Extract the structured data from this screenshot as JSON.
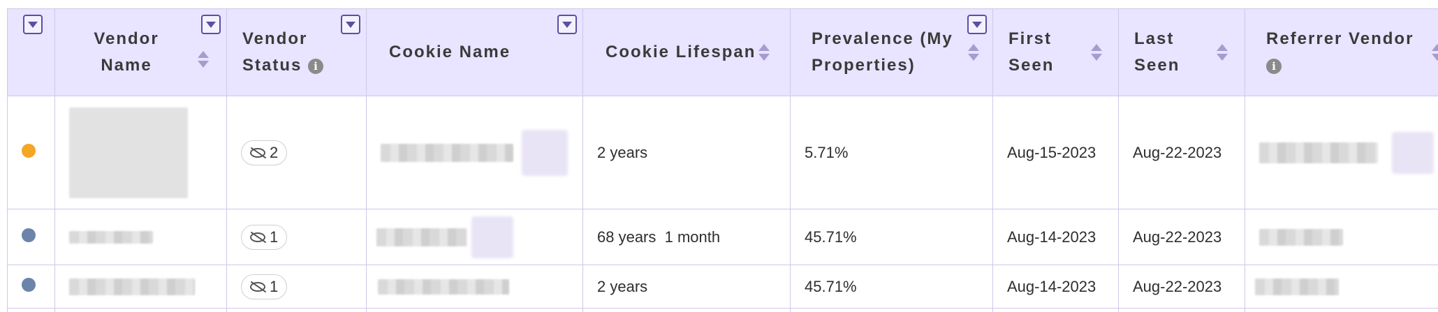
{
  "columns": [
    {
      "key": "indicator",
      "label": "",
      "filter": true,
      "sort": false
    },
    {
      "key": "vendor_name",
      "label": "Vendor Name",
      "filter": true,
      "sort": true
    },
    {
      "key": "vendor_status",
      "label": "Vendor Status",
      "filter": true,
      "sort": false,
      "info": true
    },
    {
      "key": "cookie_name",
      "label": "Cookie Name",
      "filter": true,
      "sort": false
    },
    {
      "key": "cookie_lifespan",
      "label": "Cookie Lifespan",
      "filter": false,
      "sort": true
    },
    {
      "key": "prevalence",
      "label": "Prevalence (My Properties)",
      "filter": true,
      "sort": true
    },
    {
      "key": "first_seen",
      "label": "First Seen",
      "filter": false,
      "sort": true
    },
    {
      "key": "last_seen",
      "label": "Last Seen",
      "filter": false,
      "sort": true
    },
    {
      "key": "referrer_vendor",
      "label": "Referrer Vendor",
      "filter": false,
      "sort": true,
      "info": true
    }
  ],
  "rows": [
    {
      "dot_color": "#f5a623",
      "status_count": "2",
      "cookie_lifespan": "2 years",
      "prevalence": "5.71%",
      "first_seen": "Aug-15-2023",
      "last_seen": "Aug-22-2023"
    },
    {
      "dot_color": "#6b84aa",
      "status_count": "1",
      "cookie_lifespan": "68 years  1 month",
      "prevalence": "45.71%",
      "first_seen": "Aug-14-2023",
      "last_seen": "Aug-22-2023"
    },
    {
      "dot_color": "#6b84aa",
      "status_count": "1",
      "cookie_lifespan": "2 years",
      "prevalence": "45.71%",
      "first_seen": "Aug-14-2023",
      "last_seen": "Aug-22-2023"
    }
  ],
  "icons": {
    "filter": "filter-funnel-icon",
    "sort": "sort-arrows-icon",
    "info": "info-icon",
    "status": "eye-off-icon"
  },
  "colors": {
    "header_bg": "#e9e4ff",
    "border": "#cfc8e8",
    "filter_accent": "#5a4fa0"
  }
}
